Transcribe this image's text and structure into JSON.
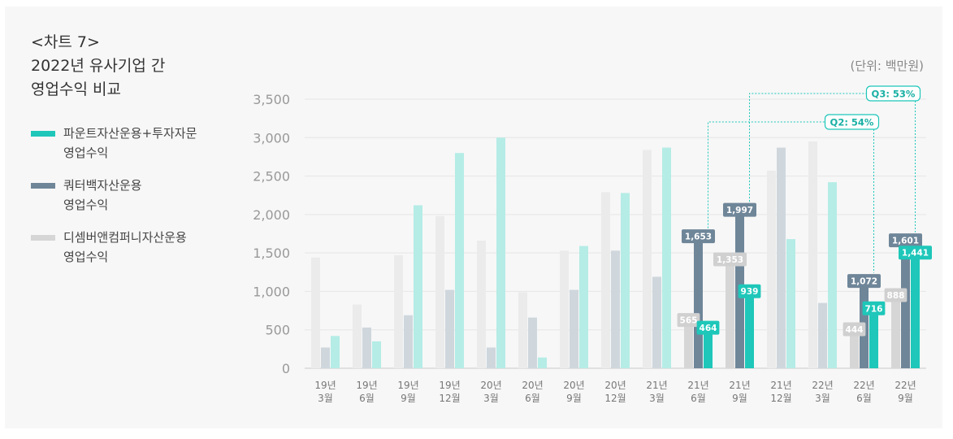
{
  "title": {
    "line1": "<차트 7>",
    "line2": "2022년 유사기업 간",
    "line3": "영업수익 비교"
  },
  "unit": "(단위: 백만원)",
  "legend": [
    {
      "line1": "파운트자산운용+투자자문",
      "line2": "영업수익",
      "color": "#1ec7b9"
    },
    {
      "line1": "쿼터백자산운용",
      "line2": "영업수익",
      "color": "#6f8699"
    },
    {
      "line1": "디셈버앤컴퍼니자산운용",
      "line2": "영업수익",
      "color": "#d6d6d6"
    }
  ],
  "colors": {
    "series_bright": [
      "#1ec7b9",
      "#6f8699",
      "#d6d6d6"
    ],
    "series_faded": [
      "#b5ece6",
      "#cfd7dd",
      "#ebebeb"
    ],
    "annotation": "#1ec7b9"
  },
  "chart_data": {
    "type": "bar",
    "categories": [
      [
        "19년",
        "3월"
      ],
      [
        "19년",
        "6월"
      ],
      [
        "19년",
        "9월"
      ],
      [
        "19년",
        "12월"
      ],
      [
        "20년",
        "3월"
      ],
      [
        "20년",
        "6월"
      ],
      [
        "20년",
        "9월"
      ],
      [
        "20년",
        "12월"
      ],
      [
        "21년",
        "3월"
      ],
      [
        "21년",
        "6월"
      ],
      [
        "21년",
        "9월"
      ],
      [
        "21년",
        "12월"
      ],
      [
        "22년",
        "3월"
      ],
      [
        "22년",
        "6월"
      ],
      [
        "22년",
        "9월"
      ]
    ],
    "series": [
      {
        "name": "디셈버앤컴퍼니자산운용 영업수익",
        "values": [
          1440,
          830,
          1470,
          1980,
          1660,
          990,
          1530,
          2290,
          2840,
          565,
          1353,
          2570,
          2950,
          444,
          888
        ]
      },
      {
        "name": "쿼터백자산운용 영업수익",
        "values": [
          270,
          530,
          690,
          1020,
          270,
          660,
          1020,
          1530,
          1190,
          1653,
          1997,
          2870,
          850,
          1072,
          1601
        ]
      },
      {
        "name": "파운트자산운용+투자자문 영업수익",
        "values": [
          420,
          350,
          2120,
          2800,
          3000,
          140,
          1590,
          2280,
          2870,
          464,
          939,
          1680,
          2420,
          716,
          1441
        ]
      }
    ],
    "highlighted_categories": [
      9,
      10,
      13,
      14
    ],
    "data_labels": {
      "9": [
        "565",
        "1,653",
        "464"
      ],
      "10": [
        "1,353",
        "1,997",
        "939"
      ],
      "13": [
        "444",
        "1,072",
        "716"
      ],
      "14": [
        "888",
        "1,601",
        "1,441"
      ]
    },
    "yticks": [
      "0",
      "500",
      "1,000",
      "1,500",
      "2,000",
      "2,500",
      "3,000",
      "3,500"
    ],
    "ylim": [
      0,
      3500
    ],
    "annotations": [
      {
        "label": "Q2: 54%",
        "from_category": 9,
        "to_category": 13
      },
      {
        "label": "Q3: 53%",
        "from_category": 10,
        "to_category": 14
      }
    ],
    "grid": true,
    "legend_position": "left"
  }
}
